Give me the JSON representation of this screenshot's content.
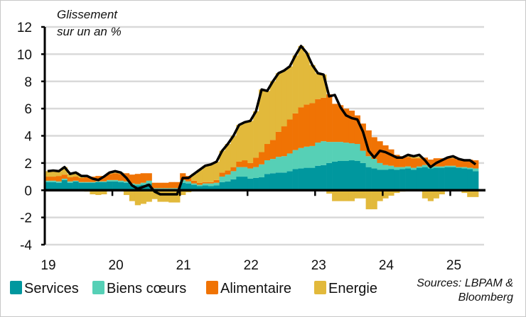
{
  "chart_data": {
    "type": "bar",
    "stacked": true,
    "title": "Glissement",
    "subtitle": "sur un an %",
    "source_line1": "Sources: LBPAM &",
    "source_line2": "Bloomberg",
    "ylim": [
      -4,
      12
    ],
    "yticks": [
      -4,
      -2,
      0,
      2,
      4,
      6,
      8,
      10,
      12
    ],
    "ytick_labels": [
      "-4",
      "-2",
      "0",
      "2",
      "4",
      "6",
      "8",
      "10",
      "12"
    ],
    "xlim": [
      "2019-01",
      "2025-07"
    ],
    "xtick_labels": [
      "19",
      "20",
      "21",
      "22",
      "23",
      "24",
      "25"
    ],
    "grid": true,
    "legend_position": "bottom",
    "x": [
      "2019-01",
      "2019-02",
      "2019-03",
      "2019-04",
      "2019-05",
      "2019-06",
      "2019-07",
      "2019-08",
      "2019-09",
      "2019-10",
      "2019-11",
      "2019-12",
      "2020-01",
      "2020-02",
      "2020-03",
      "2020-04",
      "2020-05",
      "2020-06",
      "2020-07",
      "2020-08",
      "2020-09",
      "2020-10",
      "2020-11",
      "2020-12",
      "2021-01",
      "2021-02",
      "2021-03",
      "2021-04",
      "2021-05",
      "2021-06",
      "2021-07",
      "2021-08",
      "2021-09",
      "2021-10",
      "2021-11",
      "2021-12",
      "2022-01",
      "2022-02",
      "2022-03",
      "2022-04",
      "2022-05",
      "2022-06",
      "2022-07",
      "2022-08",
      "2022-09",
      "2022-10",
      "2022-11",
      "2022-12",
      "2023-01",
      "2023-02",
      "2023-03",
      "2023-04",
      "2023-05",
      "2023-06",
      "2023-07",
      "2023-08",
      "2023-09",
      "2023-10",
      "2023-11",
      "2023-12",
      "2024-01",
      "2024-02",
      "2024-03",
      "2024-04",
      "2024-05",
      "2024-06",
      "2024-07",
      "2024-08",
      "2024-09",
      "2024-10",
      "2024-11",
      "2024-12",
      "2025-01",
      "2025-02",
      "2025-03",
      "2025-04",
      "2025-05"
    ],
    "series": [
      {
        "name": "Services",
        "color": "#00979e",
        "values": [
          0.6,
          0.6,
          0.55,
          0.75,
          0.55,
          0.65,
          0.55,
          0.55,
          0.55,
          0.6,
          0.6,
          0.65,
          0.65,
          0.6,
          0.55,
          0.4,
          0.35,
          0.4,
          0.5,
          0.1,
          0.1,
          0.1,
          0.1,
          0.1,
          0.55,
          0.5,
          0.4,
          0.3,
          0.35,
          0.3,
          0.35,
          0.6,
          0.65,
          0.8,
          1.0,
          1.0,
          0.85,
          0.9,
          0.95,
          1.2,
          1.25,
          1.3,
          1.3,
          1.4,
          1.55,
          1.6,
          1.65,
          1.65,
          1.8,
          1.85,
          2.0,
          2.1,
          2.15,
          2.15,
          2.2,
          2.15,
          2.0,
          1.7,
          1.6,
          1.5,
          1.5,
          1.55,
          1.5,
          1.55,
          1.6,
          1.5,
          1.65,
          1.7,
          1.6,
          1.65,
          1.65,
          1.7,
          1.7,
          1.65,
          1.6,
          1.55,
          1.4
        ]
      },
      {
        "name": "Biens cœurs",
        "color": "#56d0b6",
        "values": [
          0.1,
          0.1,
          0.1,
          0.1,
          0.1,
          0.05,
          0.05,
          0.05,
          0.05,
          0.05,
          0.05,
          0.1,
          0.1,
          0.1,
          0.1,
          0.1,
          0.1,
          0.15,
          0.2,
          0.05,
          0.05,
          0.05,
          0.05,
          0.05,
          0.2,
          0.15,
          0.1,
          0.1,
          0.15,
          0.2,
          0.2,
          0.4,
          0.5,
          0.6,
          0.7,
          0.7,
          0.75,
          0.8,
          0.95,
          1.0,
          1.05,
          1.15,
          1.2,
          1.3,
          1.4,
          1.5,
          1.55,
          1.6,
          1.7,
          1.75,
          1.55,
          1.45,
          1.4,
          1.35,
          1.25,
          1.25,
          0.9,
          0.8,
          0.7,
          0.5,
          0.35,
          0.25,
          0.2,
          0.15,
          0.15,
          0.15,
          0.1,
          0.15,
          0.1,
          0.1,
          0.1,
          0.1,
          0.1,
          0.05,
          0.1,
          0.1,
          0.2
        ]
      },
      {
        "name": "Alimentaire",
        "color": "#f07304",
        "values": [
          0.3,
          0.3,
          0.4,
          0.3,
          0.3,
          0.3,
          0.3,
          0.35,
          0.4,
          0.4,
          0.4,
          0.45,
          0.5,
          0.5,
          0.6,
          0.65,
          0.75,
          0.7,
          0.55,
          0.4,
          0.4,
          0.4,
          0.45,
          0.45,
          0.5,
          0.4,
          0.2,
          0.15,
          0.1,
          0.1,
          0.2,
          0.3,
          0.3,
          0.3,
          0.4,
          0.5,
          0.4,
          0.7,
          0.9,
          1.2,
          1.4,
          1.85,
          2.2,
          2.5,
          2.7,
          3.0,
          3.1,
          3.15,
          3.2,
          3.2,
          3.5,
          2.8,
          2.7,
          2.5,
          2.4,
          2.1,
          2.0,
          1.9,
          1.6,
          1.6,
          1.45,
          1.2,
          0.9,
          0.8,
          0.7,
          0.7,
          0.6,
          0.55,
          0.55,
          0.6,
          0.6,
          0.55,
          0.55,
          0.55,
          0.5,
          0.6,
          0.6
        ]
      },
      {
        "name": "Energie",
        "color": "#e2b93b",
        "values": [
          0.4,
          0.45,
          0.35,
          0.55,
          0.25,
          0.3,
          0.15,
          -0.1,
          -0.3,
          -0.35,
          -0.3,
          0.1,
          0.15,
          0.1,
          -0.35,
          -0.8,
          -1.1,
          -1.0,
          -0.85,
          -0.65,
          -0.85,
          -0.85,
          -0.9,
          -0.9,
          -0.35,
          -0.15,
          0.5,
          0.95,
          1.2,
          1.3,
          1.35,
          1.6,
          1.95,
          2.3,
          2.7,
          2.8,
          3.1,
          3.4,
          4.6,
          3.9,
          4.3,
          4.3,
          4.1,
          3.9,
          4.25,
          4.5,
          3.8,
          2.8,
          1.9,
          1.7,
          -0.25,
          -0.8,
          -0.8,
          -0.8,
          -0.8,
          -0.6,
          -0.6,
          -1.4,
          -1.4,
          -0.8,
          -0.6,
          -0.4,
          -0.2,
          -0.1,
          0.05,
          0.1,
          0.1,
          -0.6,
          -0.8,
          -0.6,
          -0.3,
          0.05,
          0.1,
          0.0,
          -0.2,
          -0.5,
          -0.5
        ]
      }
    ],
    "total_line": {
      "color": "#000000",
      "values": [
        1.4,
        1.45,
        1.4,
        1.7,
        1.2,
        1.3,
        1.05,
        1.05,
        0.85,
        0.75,
        1.0,
        1.3,
        1.4,
        1.3,
        0.9,
        0.35,
        0.1,
        0.25,
        0.4,
        -0.1,
        -0.3,
        -0.3,
        -0.3,
        -0.3,
        0.9,
        0.9,
        1.2,
        1.5,
        1.8,
        1.9,
        2.1,
        2.9,
        3.4,
        4.0,
        4.8,
        5.0,
        5.1,
        5.8,
        7.4,
        7.3,
        8.0,
        8.6,
        8.8,
        9.1,
        9.9,
        10.6,
        10.1,
        9.2,
        8.6,
        8.5,
        6.9,
        7.0,
        6.1,
        5.5,
        5.3,
        5.2,
        4.3,
        2.9,
        2.4,
        2.9,
        2.8,
        2.6,
        2.4,
        2.4,
        2.6,
        2.5,
        2.6,
        2.2,
        1.7,
        2.0,
        2.2,
        2.4,
        2.5,
        2.3,
        2.2,
        2.2,
        1.9
      ]
    },
    "colors": {
      "gridline": "#d9d9d9",
      "axis": "#000000",
      "border": "#c8c8c8"
    }
  }
}
